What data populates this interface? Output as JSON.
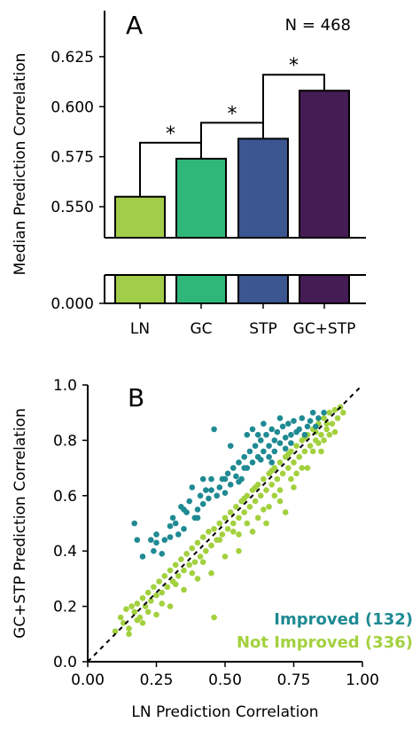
{
  "panel_a": {
    "label": "A",
    "n_label": "N = 468",
    "y_axis_label": "Median Prediction Correlation",
    "sig_marker": "*"
  },
  "panel_b": {
    "label": "B",
    "x_axis_label": "LN Prediction Correlation",
    "y_axis_label": "GC+STP Prediction Correlation",
    "legend_improved": "Improved (132)",
    "legend_not_improved": "Not Improved (336)"
  },
  "chart_data": [
    {
      "type": "bar",
      "categories": [
        "LN",
        "GC",
        "STP",
        "GC+STP"
      ],
      "values": [
        0.555,
        0.574,
        0.584,
        0.608
      ],
      "colors": [
        "#a2cd48",
        "#2fb779",
        "#3b5690",
        "#451c53"
      ],
      "ylabel": "Median Prediction Correlation",
      "ylim_upper": [
        0.5345,
        0.648
      ],
      "ylim_lower": [
        0.0,
        0.01
      ],
      "broken_axis": true,
      "yticks_upper": [
        "0.550",
        "0.575",
        "0.600",
        "0.625"
      ],
      "yticks_lower": [
        "0.000"
      ],
      "significance": [
        {
          "pair": [
            "LN",
            "GC"
          ],
          "marker": "*"
        },
        {
          "pair": [
            "GC",
            "STP"
          ],
          "marker": "*"
        },
        {
          "pair": [
            "STP",
            "GC+STP"
          ],
          "marker": "*"
        }
      ],
      "annotation": "N = 468"
    },
    {
      "type": "scatter",
      "xlabel": "LN Prediction Correlation",
      "ylabel": "GC+STP Prediction Correlation",
      "xlim": [
        0.0,
        1.0
      ],
      "ylim": [
        0.0,
        1.0
      ],
      "xticks": [
        "0.00",
        "0.25",
        "0.50",
        "0.75",
        "1.00"
      ],
      "yticks": [
        "0.0",
        "0.2",
        "0.4",
        "0.6",
        "0.8",
        "1.0"
      ],
      "diagonal": "dashed y = x",
      "series": [
        {
          "name": "Improved (132)",
          "color": "#1f8a93",
          "points": [
            [
              0.17,
              0.5
            ],
            [
              0.18,
              0.44
            ],
            [
              0.2,
              0.38
            ],
            [
              0.23,
              0.44
            ],
            [
              0.24,
              0.4
            ],
            [
              0.25,
              0.43
            ],
            [
              0.27,
              0.39
            ],
            [
              0.28,
              0.44
            ],
            [
              0.3,
              0.45
            ],
            [
              0.31,
              0.52
            ],
            [
              0.32,
              0.5
            ],
            [
              0.33,
              0.46
            ],
            [
              0.34,
              0.56
            ],
            [
              0.35,
              0.48
            ],
            [
              0.36,
              0.54
            ],
            [
              0.37,
              0.58
            ],
            [
              0.38,
              0.63
            ],
            [
              0.39,
              0.52
            ],
            [
              0.4,
              0.55
            ],
            [
              0.41,
              0.6
            ],
            [
              0.42,
              0.57
            ],
            [
              0.43,
              0.62
            ],
            [
              0.44,
              0.59
            ],
            [
              0.45,
              0.66
            ],
            [
              0.46,
              0.84
            ],
            [
              0.47,
              0.6
            ],
            [
              0.48,
              0.63
            ],
            [
              0.49,
              0.66
            ],
            [
              0.5,
              0.61
            ],
            [
              0.51,
              0.68
            ],
            [
              0.52,
              0.64
            ],
            [
              0.53,
              0.7
            ],
            [
              0.54,
              0.67
            ],
            [
              0.55,
              0.72
            ],
            [
              0.56,
              0.66
            ],
            [
              0.57,
              0.74
            ],
            [
              0.58,
              0.7
            ],
            [
              0.59,
              0.76
            ],
            [
              0.6,
              0.72
            ],
            [
              0.61,
              0.78
            ],
            [
              0.62,
              0.74
            ],
            [
              0.63,
              0.8
            ],
            [
              0.64,
              0.76
            ],
            [
              0.65,
              0.82
            ],
            [
              0.66,
              0.78
            ],
            [
              0.67,
              0.84
            ],
            [
              0.68,
              0.8
            ],
            [
              0.69,
              0.83
            ],
            [
              0.7,
              0.79
            ],
            [
              0.71,
              0.85
            ],
            [
              0.72,
              0.81
            ],
            [
              0.73,
              0.86
            ],
            [
              0.74,
              0.82
            ],
            [
              0.75,
              0.87
            ],
            [
              0.76,
              0.83
            ],
            [
              0.78,
              0.88
            ],
            [
              0.8,
              0.85
            ],
            [
              0.82,
              0.9
            ],
            [
              0.84,
              0.88
            ],
            [
              0.86,
              0.9
            ],
            [
              0.6,
              0.84
            ],
            [
              0.62,
              0.82
            ],
            [
              0.64,
              0.86
            ],
            [
              0.66,
              0.74
            ],
            [
              0.68,
              0.76
            ],
            [
              0.7,
              0.88
            ],
            [
              0.72,
              0.77
            ],
            [
              0.55,
              0.65
            ],
            [
              0.57,
              0.7
            ],
            [
              0.5,
              0.66
            ],
            [
              0.45,
              0.62
            ],
            [
              0.4,
              0.52
            ],
            [
              0.42,
              0.66
            ],
            [
              0.35,
              0.55
            ],
            [
              0.3,
              0.49
            ],
            [
              0.25,
              0.46
            ],
            [
              0.52,
              0.78
            ],
            [
              0.58,
              0.82
            ],
            [
              0.63,
              0.73
            ],
            [
              0.67,
              0.72
            ],
            [
              0.74,
              0.79
            ],
            [
              0.77,
              0.84
            ],
            [
              0.79,
              0.82
            ],
            [
              0.81,
              0.87
            ],
            [
              0.83,
              0.85
            ]
          ]
        },
        {
          "name": "Not Improved (336)",
          "color": "#a3d13e",
          "points": [
            [
              0.1,
              0.11
            ],
            [
              0.12,
              0.16
            ],
            [
              0.13,
              0.14
            ],
            [
              0.14,
              0.19
            ],
            [
              0.15,
              0.12
            ],
            [
              0.16,
              0.2
            ],
            [
              0.17,
              0.18
            ],
            [
              0.18,
              0.21
            ],
            [
              0.19,
              0.16
            ],
            [
              0.2,
              0.23
            ],
            [
              0.21,
              0.2
            ],
            [
              0.22,
              0.25
            ],
            [
              0.23,
              0.22
            ],
            [
              0.24,
              0.27
            ],
            [
              0.25,
              0.24
            ],
            [
              0.26,
              0.29
            ],
            [
              0.27,
              0.25
            ],
            [
              0.28,
              0.31
            ],
            [
              0.29,
              0.27
            ],
            [
              0.3,
              0.33
            ],
            [
              0.31,
              0.29
            ],
            [
              0.32,
              0.35
            ],
            [
              0.33,
              0.31
            ],
            [
              0.34,
              0.37
            ],
            [
              0.35,
              0.33
            ],
            [
              0.36,
              0.39
            ],
            [
              0.37,
              0.35
            ],
            [
              0.38,
              0.41
            ],
            [
              0.39,
              0.36
            ],
            [
              0.4,
              0.43
            ],
            [
              0.41,
              0.38
            ],
            [
              0.42,
              0.45
            ],
            [
              0.43,
              0.4
            ],
            [
              0.44,
              0.47
            ],
            [
              0.45,
              0.42
            ],
            [
              0.46,
              0.48
            ],
            [
              0.47,
              0.44
            ],
            [
              0.48,
              0.5
            ],
            [
              0.49,
              0.46
            ],
            [
              0.5,
              0.52
            ],
            [
              0.51,
              0.48
            ],
            [
              0.52,
              0.54
            ],
            [
              0.53,
              0.5
            ],
            [
              0.54,
              0.56
            ],
            [
              0.55,
              0.52
            ],
            [
              0.56,
              0.58
            ],
            [
              0.57,
              0.54
            ],
            [
              0.58,
              0.6
            ],
            [
              0.59,
              0.56
            ],
            [
              0.6,
              0.62
            ],
            [
              0.61,
              0.58
            ],
            [
              0.62,
              0.64
            ],
            [
              0.63,
              0.6
            ],
            [
              0.64,
              0.66
            ],
            [
              0.65,
              0.62
            ],
            [
              0.66,
              0.68
            ],
            [
              0.67,
              0.64
            ],
            [
              0.68,
              0.7
            ],
            [
              0.69,
              0.66
            ],
            [
              0.7,
              0.72
            ],
            [
              0.71,
              0.68
            ],
            [
              0.72,
              0.74
            ],
            [
              0.73,
              0.7
            ],
            [
              0.74,
              0.76
            ],
            [
              0.75,
              0.72
            ],
            [
              0.76,
              0.78
            ],
            [
              0.77,
              0.74
            ],
            [
              0.78,
              0.8
            ],
            [
              0.79,
              0.76
            ],
            [
              0.8,
              0.82
            ],
            [
              0.81,
              0.78
            ],
            [
              0.82,
              0.84
            ],
            [
              0.83,
              0.8
            ],
            [
              0.84,
              0.86
            ],
            [
              0.85,
              0.82
            ],
            [
              0.86,
              0.88
            ],
            [
              0.87,
              0.84
            ],
            [
              0.88,
              0.9
            ],
            [
              0.89,
              0.86
            ],
            [
              0.9,
              0.91
            ],
            [
              0.91,
              0.88
            ],
            [
              0.92,
              0.92
            ],
            [
              0.93,
              0.9
            ],
            [
              0.46,
              0.16
            ],
            [
              0.72,
              0.54
            ],
            [
              0.3,
              0.2
            ],
            [
              0.55,
              0.4
            ],
            [
              0.6,
              0.47
            ],
            [
              0.65,
              0.5
            ],
            [
              0.7,
              0.58
            ],
            [
              0.75,
              0.63
            ],
            [
              0.8,
              0.7
            ],
            [
              0.85,
              0.76
            ],
            [
              0.9,
              0.83
            ],
            [
              0.5,
              0.38
            ],
            [
              0.45,
              0.32
            ],
            [
              0.4,
              0.3
            ],
            [
              0.35,
              0.26
            ],
            [
              0.25,
              0.17
            ],
            [
              0.2,
              0.14
            ],
            [
              0.15,
              0.1
            ],
            [
              0.55,
              0.46
            ],
            [
              0.62,
              0.52
            ],
            [
              0.68,
              0.6
            ],
            [
              0.74,
              0.66
            ],
            [
              0.78,
              0.7
            ],
            [
              0.82,
              0.76
            ],
            [
              0.88,
              0.82
            ],
            [
              0.42,
              0.36
            ],
            [
              0.48,
              0.44
            ],
            [
              0.53,
              0.47
            ],
            [
              0.58,
              0.5
            ],
            [
              0.64,
              0.55
            ],
            [
              0.66,
              0.56
            ],
            [
              0.7,
              0.62
            ],
            [
              0.76,
              0.68
            ],
            [
              0.84,
              0.79
            ],
            [
              0.86,
              0.8
            ],
            [
              0.38,
              0.32
            ],
            [
              0.32,
              0.28
            ],
            [
              0.27,
              0.21
            ],
            [
              0.22,
              0.18
            ],
            [
              0.18,
              0.15
            ],
            [
              0.57,
              0.59
            ],
            [
              0.61,
              0.63
            ],
            [
              0.67,
              0.69
            ],
            [
              0.73,
              0.75
            ],
            [
              0.79,
              0.81
            ],
            [
              0.83,
              0.83
            ],
            [
              0.87,
              0.86
            ]
          ]
        }
      ]
    }
  ]
}
